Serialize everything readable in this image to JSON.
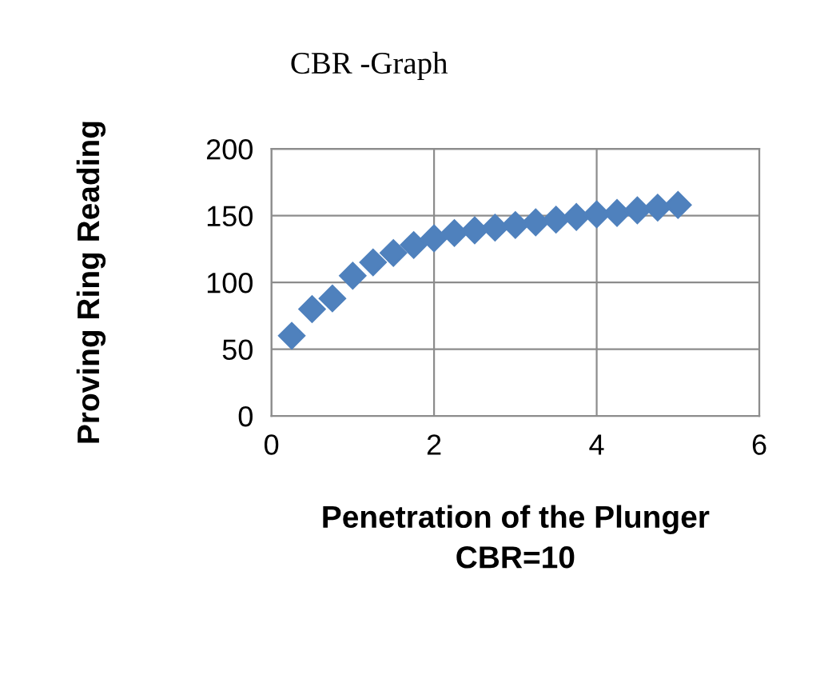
{
  "chart_data": {
    "type": "scatter",
    "title": "CBR -Graph",
    "xlabel": "Penetration of the Plunger\nCBR=10",
    "ylabel": "Proving Ring Reading",
    "x": [
      0.25,
      0.5,
      0.75,
      1.0,
      1.25,
      1.5,
      1.75,
      2.0,
      2.25,
      2.5,
      2.75,
      3.0,
      3.25,
      3.5,
      3.75,
      4.0,
      4.25,
      4.5,
      4.75,
      5.0
    ],
    "series": [
      {
        "color": "#4f81bd",
        "values": [
          60,
          80,
          88,
          105,
          115,
          122,
          128,
          133,
          137,
          139,
          141,
          143,
          145,
          147,
          149,
          151,
          152,
          154,
          156,
          158
        ]
      }
    ],
    "xlim": [
      0,
      6
    ],
    "xticks": [
      0,
      2,
      4,
      6
    ],
    "ylim": [
      0,
      200
    ],
    "yticks": [
      0,
      50,
      100,
      150,
      200
    ],
    "grid": true,
    "marker": "diamond",
    "legend": false
  }
}
